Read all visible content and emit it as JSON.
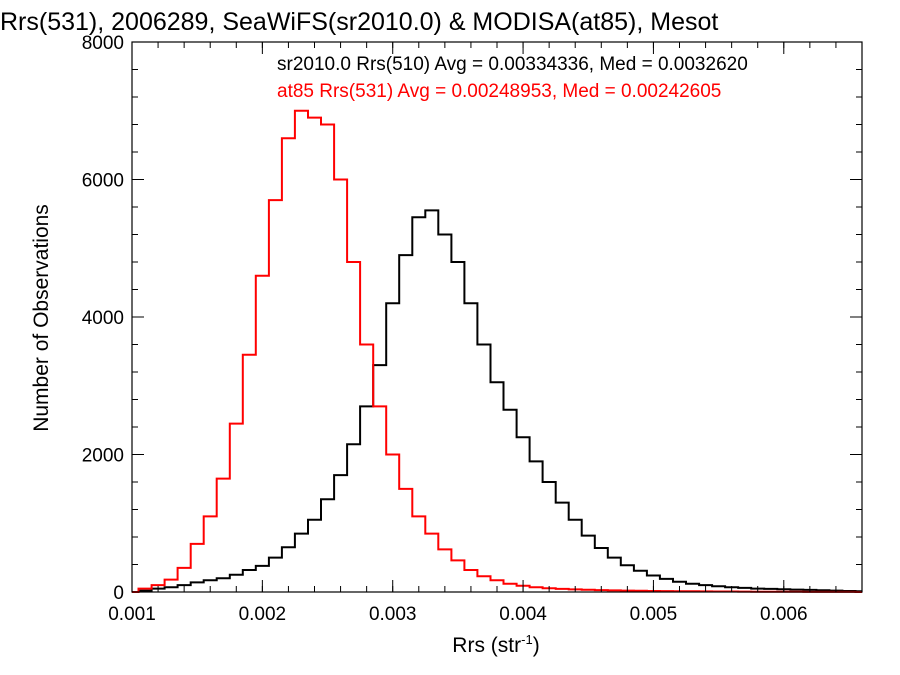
{
  "chart_data": {
    "type": "line",
    "title": "Rrs(531), 2006289, SeaWiFS(sr2010.0) & MODISA(at85), Mesot",
    "xlabel": {
      "base": "Rrs (str",
      "sup": "-1",
      "close": ")"
    },
    "ylabel": "Number of Observations",
    "xlim": [
      0.001,
      0.0066
    ],
    "ylim": [
      0,
      8000
    ],
    "x_ticks": [
      "0.001",
      "0.002",
      "0.003",
      "0.004",
      "0.005",
      "0.006"
    ],
    "y_ticks": [
      "0",
      "2000",
      "4000",
      "6000",
      "8000"
    ],
    "annotations": [
      {
        "text": "sr2010.0 Rrs(510) Avg = 0.00334336, Med = 0.0032620",
        "color": "#000000"
      },
      {
        "text": "at85 Rrs(531) Avg = 0.00248953, Med = 0.00242605",
        "color": "#ff0000"
      }
    ],
    "series": [
      {
        "color": "#000000",
        "x": [
          0.001,
          0.0011,
          0.0012,
          0.0013,
          0.0014,
          0.0015,
          0.0016,
          0.0017,
          0.0018,
          0.0019,
          0.002,
          0.0021,
          0.0022,
          0.0023,
          0.0024,
          0.0025,
          0.0026,
          0.0027,
          0.0028,
          0.0029,
          0.003,
          0.0031,
          0.0032,
          0.0033,
          0.0034,
          0.0035,
          0.0036,
          0.0037,
          0.0038,
          0.0039,
          0.004,
          0.0041,
          0.0042,
          0.0043,
          0.0044,
          0.0045,
          0.0046,
          0.0047,
          0.0048,
          0.0049,
          0.005,
          0.0051,
          0.0052,
          0.0053,
          0.0054,
          0.0055,
          0.0056,
          0.0057,
          0.0058,
          0.0059,
          0.006,
          0.0061,
          0.0062,
          0.0063,
          0.0064,
          0.0065,
          0.0066
        ],
        "values": [
          0,
          20,
          50,
          70,
          100,
          140,
          170,
          200,
          250,
          320,
          380,
          500,
          650,
          850,
          1050,
          1350,
          1700,
          2150,
          2700,
          3300,
          4200,
          4900,
          5450,
          5550,
          5200,
          4800,
          4200,
          3600,
          3050,
          2650,
          2250,
          1900,
          1600,
          1300,
          1050,
          820,
          640,
          500,
          390,
          310,
          240,
          190,
          150,
          120,
          100,
          85,
          70,
          60,
          50,
          45,
          40,
          35,
          30,
          25,
          20,
          15,
          10
        ]
      },
      {
        "color": "#ff0000",
        "x": [
          0.001,
          0.0011,
          0.0012,
          0.0013,
          0.0014,
          0.0015,
          0.0016,
          0.0017,
          0.0018,
          0.0019,
          0.002,
          0.0021,
          0.0022,
          0.0023,
          0.0024,
          0.0025,
          0.0026,
          0.0027,
          0.0028,
          0.0029,
          0.003,
          0.0031,
          0.0032,
          0.0033,
          0.0034,
          0.0035,
          0.0036,
          0.0037,
          0.0038,
          0.0039,
          0.004,
          0.0041,
          0.0042,
          0.0043,
          0.0044,
          0.0045,
          0.0046,
          0.0047,
          0.0048,
          0.0049,
          0.005,
          0.0051,
          0.0052,
          0.0053,
          0.0054,
          0.0055,
          0.0056,
          0.0057,
          0.0058,
          0.0059,
          0.006,
          0.0061,
          0.0062,
          0.0063,
          0.0064,
          0.0065,
          0.0066
        ],
        "values": [
          0,
          50,
          100,
          180,
          350,
          700,
          1100,
          1650,
          2450,
          3450,
          4600,
          5700,
          6600,
          7000,
          6900,
          6800,
          6000,
          4800,
          3600,
          2700,
          2000,
          1500,
          1100,
          850,
          620,
          460,
          320,
          230,
          170,
          120,
          90,
          70,
          55,
          45,
          38,
          32,
          28,
          24,
          20,
          17,
          15,
          13,
          11,
          10,
          9,
          8,
          7,
          6,
          5,
          4,
          3,
          3,
          2,
          2,
          1,
          1,
          0
        ]
      }
    ]
  }
}
